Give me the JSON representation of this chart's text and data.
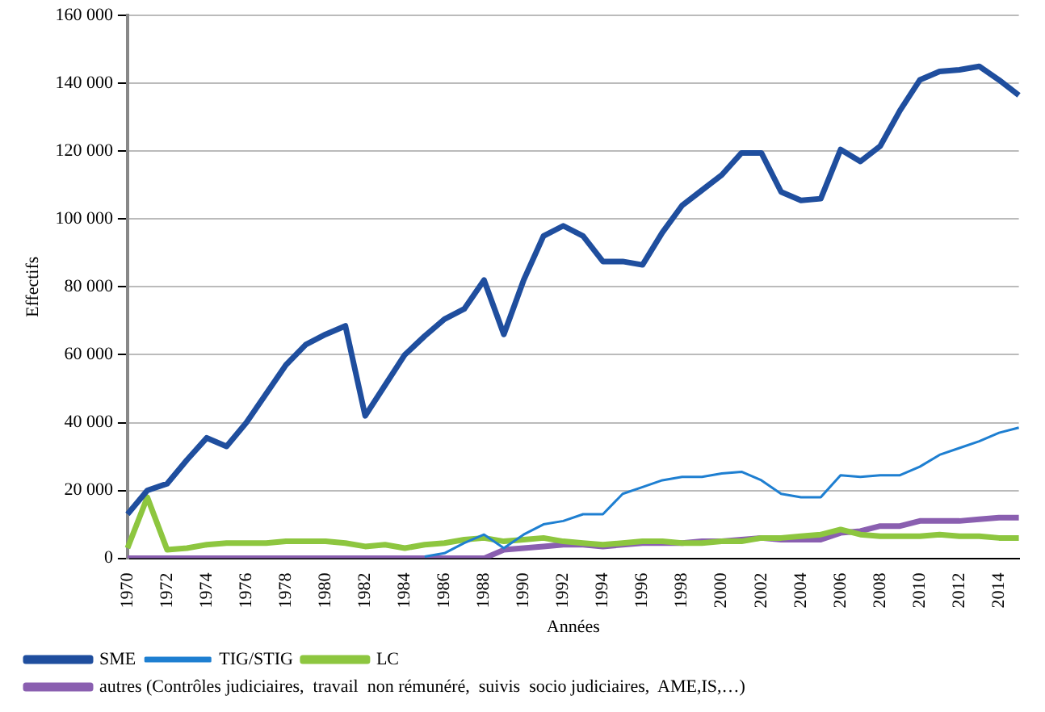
{
  "chart_data": {
    "type": "line",
    "xlabel": "Années",
    "ylabel": "Effectifs",
    "categories": [
      "1970",
      null,
      "1972",
      null,
      "1974",
      null,
      "1976",
      null,
      "1978",
      null,
      "1980",
      null,
      "1982",
      null,
      "1984",
      null,
      "1986",
      null,
      "1988",
      null,
      "1990",
      null,
      "1992",
      null,
      "1994",
      null,
      "1996",
      null,
      "1998",
      null,
      "2000",
      null,
      "2002",
      null,
      "2004",
      null,
      "2006",
      null,
      "2008",
      null,
      "2010",
      null,
      "2012",
      null,
      "2014",
      null
    ],
    "series": [
      {
        "name": "SME",
        "color": "#1f4e9e",
        "values": [
          13000,
          20000,
          22000,
          29000,
          35500,
          33000,
          40000,
          48500,
          57000,
          63000,
          66000,
          68500,
          42000,
          51000,
          60000,
          65500,
          70500,
          73500,
          82000,
          66000,
          82000,
          95000,
          98000,
          95000,
          87500,
          87500,
          86500,
          96000,
          104000,
          108500,
          113000,
          119500,
          119500,
          108000,
          105500,
          106000,
          120500,
          117000,
          121500,
          132000,
          141000,
          143500,
          144000,
          145000,
          141000,
          136500
        ]
      },
      {
        "name": "TIG/STIG",
        "color": "#1e7fd1",
        "values": [
          null,
          null,
          null,
          null,
          null,
          null,
          null,
          null,
          null,
          null,
          null,
          null,
          null,
          null,
          null,
          500,
          1500,
          4500,
          7000,
          3000,
          7000,
          10000,
          11000,
          13000,
          13000,
          19000,
          21000,
          23000,
          24000,
          24000,
          25000,
          25500,
          23000,
          19000,
          18000,
          18000,
          24500,
          24000,
          24500,
          24500,
          27000,
          30500,
          32500,
          34500,
          37000,
          38500
        ]
      },
      {
        "name": "LC",
        "color": "#8dc63f",
        "values": [
          3000,
          18000,
          2500,
          3000,
          4000,
          4500,
          4500,
          4500,
          5000,
          5000,
          5000,
          4500,
          3500,
          4000,
          3000,
          4000,
          4500,
          5500,
          6000,
          5000,
          5500,
          6000,
          5000,
          4500,
          4000,
          4500,
          5000,
          5000,
          4500,
          4500,
          5000,
          5000,
          6000,
          6000,
          6500,
          7000,
          8500,
          7000,
          6500,
          6500,
          6500,
          7000,
          6500,
          6500,
          6000,
          6000
        ]
      },
      {
        "name": "autres (Contrôles judiciaires,  travail  non rémunéré,  suivis  socio judiciaires,  AME,IS,…)",
        "color": "#8a5fb0",
        "values": [
          0,
          0,
          0,
          0,
          0,
          0,
          0,
          0,
          0,
          0,
          0,
          0,
          0,
          0,
          0,
          0,
          0,
          0,
          0,
          2500,
          3000,
          3500,
          4000,
          4000,
          3500,
          4000,
          4500,
          4500,
          4500,
          5000,
          5000,
          5500,
          6000,
          5500,
          5500,
          5500,
          7500,
          8000,
          9500,
          9500,
          11000,
          11000,
          11000,
          11500,
          12000,
          12000
        ]
      }
    ],
    "ylim": [
      0,
      160000
    ],
    "yticks": [
      0,
      {
        "value": 20000,
        "label": "20 000"
      },
      {
        "value": 40000,
        "label": "40 000"
      },
      {
        "value": 60000,
        "label": "60 000"
      },
      {
        "value": 80000,
        "label": "80 000"
      },
      {
        "value": 100000,
        "label": "100 000"
      },
      {
        "value": 120000,
        "label": "120 000"
      },
      {
        "value": 140000,
        "label": "140 000"
      },
      {
        "value": 160000,
        "label": "160 000"
      }
    ],
    "grid": "y",
    "legend": "bottom",
    "marker": "none",
    "line_style": "solid"
  }
}
